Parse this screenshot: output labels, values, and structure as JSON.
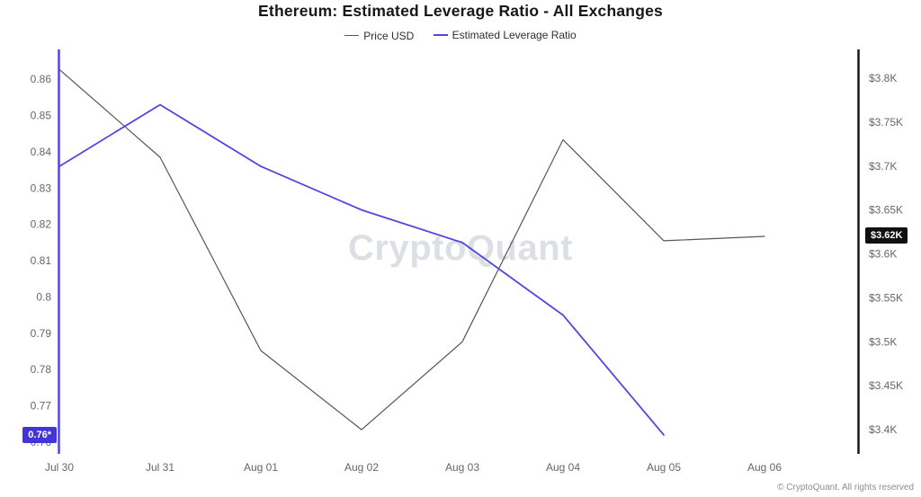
{
  "header": {
    "title": "Ethereum: Estimated Leverage Ratio - All Exchanges"
  },
  "legend": {
    "price": "Price USD",
    "ratio": "Estimated Leverage Ratio"
  },
  "watermark": {
    "text": "CryptoQuant"
  },
  "footer": {
    "text": "© CryptoQuant. All rights reserved"
  },
  "badges": {
    "leverage": {
      "label": "0.76*",
      "value": 0.762
    },
    "price": {
      "label": "$3.62K",
      "value": 3.62
    }
  },
  "colors": {
    "price_line": "#55565a",
    "ratio_line": "#5246e0",
    "accent_badge": "#4334d8",
    "black_badge": "#101014",
    "axis_text": "#63666c"
  },
  "chart_data": {
    "type": "line",
    "title": "Ethereum: Estimated Leverage Ratio - All Exchanges",
    "categories": [
      "Jul 30",
      "Jul 31",
      "Aug 01",
      "Aug 02",
      "Aug 03",
      "Aug 04",
      "Aug 05",
      "Aug 06"
    ],
    "series": [
      {
        "name": "Price USD",
        "axis": "right",
        "color": "#55565a",
        "width": 1.2,
        "values": [
          3.81,
          3.71,
          3.49,
          3.4,
          3.5,
          3.73,
          3.615,
          3.62
        ]
      },
      {
        "name": "Estimated Leverage Ratio",
        "axis": "left",
        "color": "#5246e0",
        "width": 1.8,
        "values": [
          0.836,
          0.853,
          0.836,
          0.824,
          0.815,
          0.795,
          0.762,
          null
        ]
      }
    ],
    "left_axis": {
      "ticks": [
        "0.86",
        "0.85",
        "0.84",
        "0.83",
        "0.82",
        "0.81",
        "0.8",
        "0.79",
        "0.78",
        "0.77",
        "0.76"
      ],
      "tick_values": [
        0.86,
        0.85,
        0.84,
        0.83,
        0.82,
        0.81,
        0.8,
        0.79,
        0.78,
        0.77,
        0.76
      ],
      "range": [
        0.758,
        0.8665
      ]
    },
    "right_axis": {
      "ticks": [
        "$3.8K",
        "$3.75K",
        "$3.7K",
        "$3.65K",
        "$3.6K",
        "$3.55K",
        "$3.5K",
        "$3.45K",
        "$3.4K"
      ],
      "tick_values": [
        3.8,
        3.75,
        3.7,
        3.65,
        3.6,
        3.55,
        3.5,
        3.45,
        3.4
      ],
      "range": [
        3.3776,
        3.8256
      ]
    },
    "legend_position": "top",
    "grid": false
  }
}
